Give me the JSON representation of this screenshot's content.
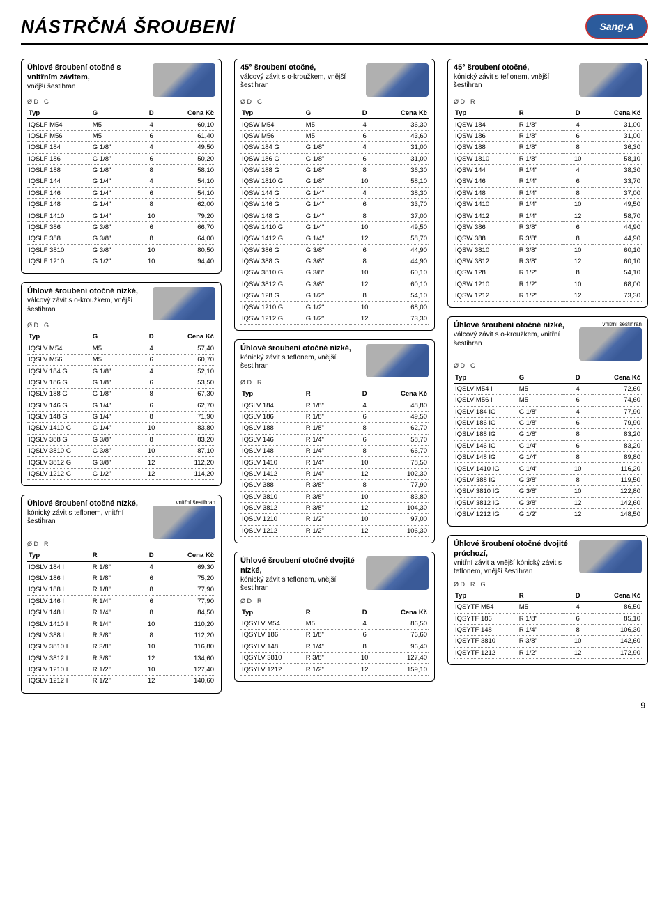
{
  "page_title": "NÁSTRČNÁ ŠROUBENÍ",
  "logo_text": "Sang-A",
  "page_number": "9",
  "th_typ": "Typ",
  "th_g": "G",
  "th_r": "R",
  "th_d": "D",
  "th_cena": "Cena Kč",
  "dim_od": "Ø D",
  "dim_g": "G",
  "dim_r": "R",
  "tag_inner": "vnitřní šestihran",
  "boxes": {
    "b1": {
      "title": "Úhlové šroubení otočné s vnitřním závitem,",
      "sub": "vnější šestihran"
    },
    "b2": {
      "title": "45° šroubení otočné,",
      "sub": "válcový závit s o-kroužkem,\nvnější šestihran"
    },
    "b3": {
      "title": "45° šroubení otočné,",
      "sub": "kónický závit s teflonem,\nvnější šestihran"
    },
    "b4": {
      "title": "Úhlové šroubení otočné nízké,",
      "sub": "válcový závit s o-kroužkem,\nvnější šestihran"
    },
    "b5": {
      "title": "Úhlové šroubení otočné nízké,",
      "sub": "kónický závit s teflonem,\nvnitřní šestihran"
    },
    "b6": {
      "title": "Úhlové šroubení otočné nízké,",
      "sub": "kónický závit s teflonem,\nvnější šestihran"
    },
    "b7": {
      "title": "Úhlové šroubení otočné nízké,",
      "sub": "válcový závit s o-kroužkem,\nvnitřní šestihran"
    },
    "b8": {
      "title": "Úhlové šroubení otočné dvojité nízké,",
      "sub": "kónický závit s teflonem,\nvnější šestihran"
    },
    "b9": {
      "title": "Úhlové šroubení otočné dvojité průchozí,",
      "sub": "vnitřní závit a vnější\nkónický závit s teflonem,\nvnější šestihran"
    }
  },
  "tables": {
    "t1": {
      "h2": "G",
      "rows": [
        [
          "IQSLF M54",
          "M5",
          "4",
          "60,10"
        ],
        [
          "IQSLF M56",
          "M5",
          "6",
          "61,40"
        ],
        [
          "IQSLF 184",
          "G 1/8\"",
          "4",
          "49,50"
        ],
        [
          "IQSLF 186",
          "G 1/8\"",
          "6",
          "50,20"
        ],
        [
          "IQSLF 188",
          "G 1/8\"",
          "8",
          "58,10"
        ],
        [
          "IQSLF 144",
          "G 1/4\"",
          "4",
          "54,10"
        ],
        [
          "IQSLF 146",
          "G 1/4\"",
          "6",
          "54,10"
        ],
        [
          "IQSLF 148",
          "G 1/4\"",
          "8",
          "62,00"
        ],
        [
          "IQSLF 1410",
          "G 1/4\"",
          "10",
          "79,20"
        ],
        [
          "IQSLF 386",
          "G 3/8\"",
          "6",
          "66,70"
        ],
        [
          "IQSLF 388",
          "G 3/8\"",
          "8",
          "64,00"
        ],
        [
          "IQSLF 3810",
          "G 3/8\"",
          "10",
          "80,50"
        ],
        [
          "IQSLF 1210",
          "G 1/2\"",
          "10",
          "94,40"
        ]
      ]
    },
    "t2": {
      "h2": "G",
      "rows": [
        [
          "IQSW M54",
          "M5",
          "4",
          "36,30"
        ],
        [
          "IQSW M56",
          "M5",
          "6",
          "43,60"
        ],
        [
          "IQSW 184 G",
          "G 1/8\"",
          "4",
          "31,00"
        ],
        [
          "IQSW 186 G",
          "G 1/8\"",
          "6",
          "31,00"
        ],
        [
          "IQSW 188 G",
          "G 1/8\"",
          "8",
          "36,30"
        ],
        [
          "IQSW 1810 G",
          "G 1/8\"",
          "10",
          "58,10"
        ],
        [
          "IQSW 144 G",
          "G 1/4\"",
          "4",
          "38,30"
        ],
        [
          "IQSW 146 G",
          "G 1/4\"",
          "6",
          "33,70"
        ],
        [
          "IQSW 148 G",
          "G 1/4\"",
          "8",
          "37,00"
        ],
        [
          "IQSW 1410 G",
          "G 1/4\"",
          "10",
          "49,50"
        ],
        [
          "IQSW 1412 G",
          "G 1/4\"",
          "12",
          "58,70"
        ],
        [
          "IQSW 386 G",
          "G 3/8\"",
          "6",
          "44,90"
        ],
        [
          "IQSW 388 G",
          "G 3/8\"",
          "8",
          "44,90"
        ],
        [
          "IQSW 3810 G",
          "G 3/8\"",
          "10",
          "60,10"
        ],
        [
          "IQSW 3812 G",
          "G 3/8\"",
          "12",
          "60,10"
        ],
        [
          "IQSW 128 G",
          "G 1/2\"",
          "8",
          "54,10"
        ],
        [
          "IQSW 1210 G",
          "G 1/2\"",
          "10",
          "68,00"
        ],
        [
          "IQSW 1212 G",
          "G 1/2\"",
          "12",
          "73,30"
        ]
      ]
    },
    "t3": {
      "h2": "R",
      "rows": [
        [
          "IQSW 184",
          "R 1/8\"",
          "4",
          "31,00"
        ],
        [
          "IQSW 186",
          "R 1/8\"",
          "6",
          "31,00"
        ],
        [
          "IQSW 188",
          "R 1/8\"",
          "8",
          "36,30"
        ],
        [
          "IQSW 1810",
          "R 1/8\"",
          "10",
          "58,10"
        ],
        [
          "IQSW 144",
          "R 1/4\"",
          "4",
          "38,30"
        ],
        [
          "IQSW 146",
          "R 1/4\"",
          "6",
          "33,70"
        ],
        [
          "IQSW 148",
          "R 1/4\"",
          "8",
          "37,00"
        ],
        [
          "IQSW 1410",
          "R 1/4\"",
          "10",
          "49,50"
        ],
        [
          "IQSW 1412",
          "R 1/4\"",
          "12",
          "58,70"
        ],
        [
          "IQSW 386",
          "R 3/8\"",
          "6",
          "44,90"
        ],
        [
          "IQSW 388",
          "R 3/8\"",
          "8",
          "44,90"
        ],
        [
          "IQSW 3810",
          "R 3/8\"",
          "10",
          "60,10"
        ],
        [
          "IQSW 3812",
          "R 3/8\"",
          "12",
          "60,10"
        ],
        [
          "IQSW 128",
          "R 1/2\"",
          "8",
          "54,10"
        ],
        [
          "IQSW 1210",
          "R 1/2\"",
          "10",
          "68,00"
        ],
        [
          "IQSW 1212",
          "R 1/2\"",
          "12",
          "73,30"
        ]
      ]
    },
    "t4": {
      "h2": "G",
      "rows": [
        [
          "IQSLV M54",
          "M5",
          "4",
          "57,40"
        ],
        [
          "IQSLV M56",
          "M5",
          "6",
          "60,70"
        ],
        [
          "IQSLV 184 G",
          "G 1/8\"",
          "4",
          "52,10"
        ],
        [
          "IQSLV 186 G",
          "G 1/8\"",
          "6",
          "53,50"
        ],
        [
          "IQSLV 188 G",
          "G 1/8\"",
          "8",
          "67,30"
        ],
        [
          "IQSLV 146 G",
          "G 1/4\"",
          "6",
          "62,70"
        ],
        [
          "IQSLV 148 G",
          "G 1/4\"",
          "8",
          "71,90"
        ],
        [
          "IQSLV 1410 G",
          "G 1/4\"",
          "10",
          "83,80"
        ],
        [
          "IQSLV 388 G",
          "G 3/8\"",
          "8",
          "83,20"
        ],
        [
          "IQSLV 3810 G",
          "G 3/8\"",
          "10",
          "87,10"
        ],
        [
          "IQSLV 3812 G",
          "G 3/8\"",
          "12",
          "112,20"
        ],
        [
          "IQSLV 1212 G",
          "G 1/2\"",
          "12",
          "114,20"
        ]
      ]
    },
    "t5": {
      "h2": "R",
      "rows": [
        [
          "IQSLV 184 I",
          "R 1/8\"",
          "4",
          "69,30"
        ],
        [
          "IQSLV 186 I",
          "R 1/8\"",
          "6",
          "75,20"
        ],
        [
          "IQSLV 188 I",
          "R 1/8\"",
          "8",
          "77,90"
        ],
        [
          "IQSLV 146 I",
          "R 1/4\"",
          "6",
          "77,90"
        ],
        [
          "IQSLV 148 I",
          "R 1/4\"",
          "8",
          "84,50"
        ],
        [
          "IQSLV 1410 I",
          "R 1/4\"",
          "10",
          "110,20"
        ],
        [
          "IQSLV 388 I",
          "R 3/8\"",
          "8",
          "112,20"
        ],
        [
          "IQSLV 3810 I",
          "R 3/8\"",
          "10",
          "116,80"
        ],
        [
          "IQSLV 3812 I",
          "R 3/8\"",
          "12",
          "134,60"
        ],
        [
          "IQSLV 1210 I",
          "R 1/2\"",
          "10",
          "127,40"
        ],
        [
          "IQSLV 1212 I",
          "R 1/2\"",
          "12",
          "140,60"
        ]
      ]
    },
    "t6": {
      "h2": "R",
      "rows": [
        [
          "IQSLV 184",
          "R 1/8\"",
          "4",
          "48,80"
        ],
        [
          "IQSLV 186",
          "R 1/8\"",
          "6",
          "49,50"
        ],
        [
          "IQSLV 188",
          "R 1/8\"",
          "8",
          "62,70"
        ],
        [
          "IQSLV 146",
          "R 1/4\"",
          "6",
          "58,70"
        ],
        [
          "IQSLV 148",
          "R 1/4\"",
          "8",
          "66,70"
        ],
        [
          "IQSLV 1410",
          "R 1/4\"",
          "10",
          "78,50"
        ],
        [
          "IQSLV 1412",
          "R 1/4\"",
          "12",
          "102,30"
        ],
        [
          "IQSLV 388",
          "R 3/8\"",
          "8",
          "77,90"
        ],
        [
          "IQSLV 3810",
          "R 3/8\"",
          "10",
          "83,80"
        ],
        [
          "IQSLV 3812",
          "R 3/8\"",
          "12",
          "104,30"
        ],
        [
          "IQSLV 1210",
          "R 1/2\"",
          "10",
          "97,00"
        ],
        [
          "IQSLV 1212",
          "R 1/2\"",
          "12",
          "106,30"
        ]
      ]
    },
    "t7": {
      "h2": "G",
      "rows": [
        [
          "IQSLV M54 I",
          "M5",
          "4",
          "72,60"
        ],
        [
          "IQSLV M56 I",
          "M5",
          "6",
          "74,60"
        ],
        [
          "IQSLV 184 IG",
          "G 1/8\"",
          "4",
          "77,90"
        ],
        [
          "IQSLV 186 IG",
          "G 1/8\"",
          "6",
          "79,90"
        ],
        [
          "IQSLV 188 IG",
          "G 1/8\"",
          "8",
          "83,20"
        ],
        [
          "IQSLV 146 IG",
          "G 1/4\"",
          "6",
          "83,20"
        ],
        [
          "IQSLV 148 IG",
          "G 1/4\"",
          "8",
          "89,80"
        ],
        [
          "IQSLV 1410 IG",
          "G 1/4\"",
          "10",
          "116,20"
        ],
        [
          "IQSLV 388 IG",
          "G 3/8\"",
          "8",
          "119,50"
        ],
        [
          "IQSLV 3810 IG",
          "G 3/8\"",
          "10",
          "122,80"
        ],
        [
          "IQSLV 3812 IG",
          "G 3/8\"",
          "12",
          "142,60"
        ],
        [
          "IQSLV 1212 IG",
          "G 1/2\"",
          "12",
          "148,50"
        ]
      ]
    },
    "t8": {
      "h2": "R",
      "rows": [
        [
          "IQSYLV M54",
          "M5",
          "4",
          "86,50"
        ],
        [
          "IQSYLV 186",
          "R 1/8\"",
          "6",
          "76,60"
        ],
        [
          "IQSYLV 148",
          "R 1/4\"",
          "8",
          "96,40"
        ],
        [
          "IQSYLV 3810",
          "R 3/8\"",
          "10",
          "127,40"
        ],
        [
          "IQSYLV 1212",
          "R 1/2\"",
          "12",
          "159,10"
        ]
      ]
    },
    "t9": {
      "h2": "R",
      "rows": [
        [
          "IQSYTF M54",
          "M5",
          "4",
          "86,50"
        ],
        [
          "IQSYTF 186",
          "R 1/8\"",
          "6",
          "85,10"
        ],
        [
          "IQSYTF 148",
          "R 1/4\"",
          "8",
          "106,30"
        ],
        [
          "IQSYTF 3810",
          "R 3/8\"",
          "10",
          "142,60"
        ],
        [
          "IQSYTF 1212",
          "R 1/2\"",
          "12",
          "172,90"
        ]
      ]
    }
  }
}
